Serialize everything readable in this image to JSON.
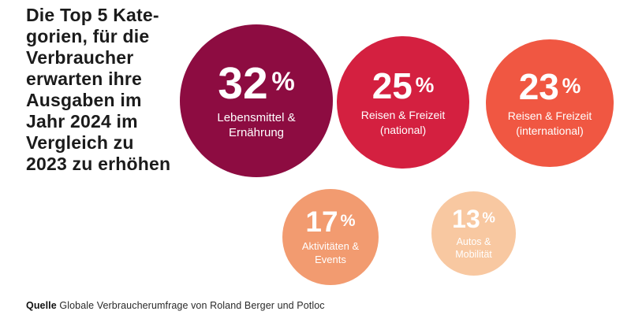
{
  "chart_data": {
    "type": "bubble",
    "title": "Die Top 5 Kategorien, für die Verbraucher erwarten ihre Ausgaben im Jahr 2024 im Vergleich zu 2023 zu erhöhen",
    "categories": [
      "Lebensmittel & Ernährung",
      "Reisen & Freizeit (national)",
      "Reisen & Freizeit (international)",
      "Aktivitäten & Events",
      "Autos & Mobilität"
    ],
    "values": [
      32,
      25,
      23,
      17,
      13
    ],
    "unit": "%",
    "colors": [
      "#8D0C41",
      "#D42040",
      "#F05742",
      "#F29B70",
      "#F8C8A1"
    ],
    "legend": false,
    "grid": false,
    "source": "Quelle Globale Verbraucherumfrage von Roland Berger und Potloc"
  },
  "title": {
    "text": "Die Top 5 Kate-\ngorien, für die\nVerbraucher\nerwarten ihre\nAusgaben im\nJahr 2024 im\nVergleich zu\n2023 zu erhöhen"
  },
  "circles": [
    {
      "value": "32",
      "unit": "%",
      "label": "Lebensmittel &\nErnährung",
      "color": "#8D0C41"
    },
    {
      "value": "25",
      "unit": "%",
      "label": "Reisen & Freizeit\n(national)",
      "color": "#D42040"
    },
    {
      "value": "23",
      "unit": "%",
      "label": "Reisen & Freizeit\n(international)",
      "color": "#F05742"
    },
    {
      "value": "17",
      "unit": "%",
      "label": "Aktivitäten &\nEvents",
      "color": "#F29B70"
    },
    {
      "value": "13",
      "unit": "%",
      "label": "Autos &\nMobilität",
      "color": "#F8C8A1"
    }
  ],
  "source": {
    "prefix": "Quelle",
    "text": "Globale Verbraucherumfrage von Roland Berger und Potloc"
  }
}
